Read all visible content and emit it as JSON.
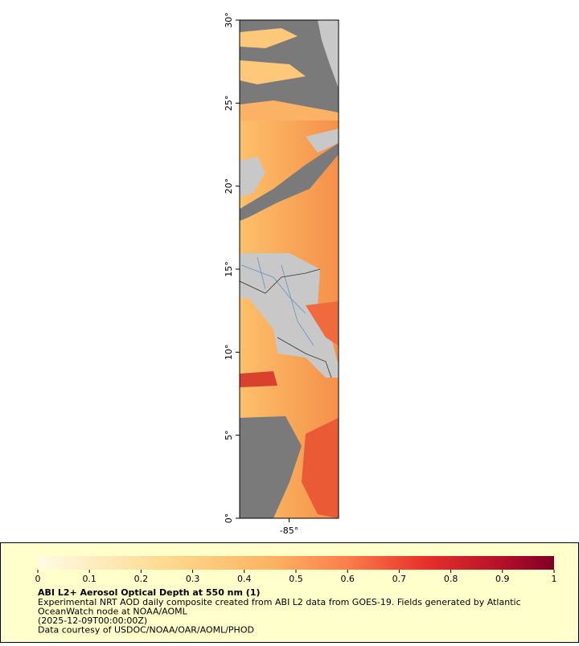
{
  "map": {
    "lat_range": [
      0,
      30
    ],
    "lon_range": [
      -88,
      -82
    ],
    "lat_ticks": [
      {
        "value": 0,
        "label": "0°"
      },
      {
        "value": 5,
        "label": "5°"
      },
      {
        "value": 10,
        "label": "10°"
      },
      {
        "value": 15,
        "label": "15°"
      },
      {
        "value": 20,
        "label": "20°"
      },
      {
        "value": 25,
        "label": "25°"
      },
      {
        "value": 30,
        "label": "30°"
      }
    ],
    "lon_ticks": [
      {
        "value": -85,
        "label": "-85°"
      }
    ]
  },
  "legend": {
    "range": [
      0,
      1
    ],
    "ticks": [
      0,
      0.1,
      0.2,
      0.3,
      0.4,
      0.5,
      0.6,
      0.7,
      0.8,
      0.9,
      1
    ],
    "title": "ABI L2+ Aerosol Optical Depth at 550 nm (1)",
    "lines": [
      "Experimental NRT AOD daily composite created from ABI L2 data from GOES-19. Fields generated by Atlantic",
      "OceanWatch node at NOAA/AOML",
      "(2025-12-09T00:00:00Z)",
      "Data courtesy of USDOC/NOAA/OAR/AOML/PHOD"
    ]
  }
}
